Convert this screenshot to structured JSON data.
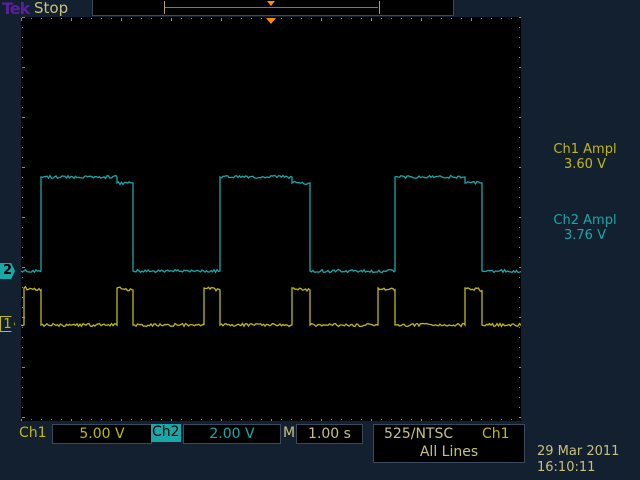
{
  "header": {
    "brand": "Tek",
    "status": "Stop"
  },
  "measurements": [
    {
      "label": "Ch1 Ampl",
      "value": "3.60 V",
      "color": "#c0b814"
    },
    {
      "label": "Ch2 Ampl",
      "value": "3.76 V",
      "color": "#18a8a8"
    }
  ],
  "bottom": {
    "ch1_label": "Ch1",
    "ch1_scale": "5.00 V",
    "ch2_label": "Ch2",
    "ch2_scale": "2.00 V",
    "m_label": "M",
    "time_scale": "1.00 s",
    "trigger_mode": "525/NTSC",
    "trigger_source": "Ch1",
    "trigger_lines": "All Lines",
    "date": "29 Mar 2011",
    "time": "16:10:11"
  },
  "markers": {
    "ch1": "1",
    "ch2": "2"
  },
  "chart_data": {
    "type": "line",
    "xlabel": "",
    "ylabel": "",
    "x_unit": "s",
    "xlim": [
      -5,
      5
    ],
    "grid": false,
    "series": [
      {
        "name": "Ch1",
        "color": "#c0b814",
        "volts_per_div": 5,
        "points": [
          [
            -5,
            0
          ],
          [
            -4.94,
            0
          ],
          [
            -4.94,
            3.7
          ],
          [
            -4.6,
            3.5
          ],
          [
            -4.6,
            0
          ],
          [
            -3.08,
            0
          ],
          [
            -3.08,
            3.7
          ],
          [
            -2.76,
            3.5
          ],
          [
            -2.76,
            0
          ],
          [
            -1.34,
            0
          ],
          [
            -1.34,
            3.7
          ],
          [
            -1.02,
            3.5
          ],
          [
            -1.02,
            0
          ],
          [
            0.42,
            0
          ],
          [
            0.42,
            3.7
          ],
          [
            0.78,
            3.5
          ],
          [
            0.78,
            0
          ],
          [
            2.14,
            0
          ],
          [
            2.14,
            3.7
          ],
          [
            2.48,
            3.5
          ],
          [
            2.48,
            0
          ],
          [
            3.88,
            0
          ],
          [
            3.88,
            3.7
          ],
          [
            4.22,
            3.5
          ],
          [
            4.22,
            0
          ],
          [
            5,
            0
          ]
        ]
      },
      {
        "name": "Ch2",
        "color": "#18a8a8",
        "volts_per_div": 2,
        "points": [
          [
            -5,
            0
          ],
          [
            -4.6,
            0
          ],
          [
            -4.6,
            3.76
          ],
          [
            -3.08,
            3.76
          ],
          [
            -3.08,
            3.52
          ],
          [
            -2.76,
            3.52
          ],
          [
            -2.76,
            0
          ],
          [
            -1.02,
            0
          ],
          [
            -1.02,
            3.76
          ],
          [
            0.42,
            3.76
          ],
          [
            0.42,
            3.52
          ],
          [
            0.78,
            3.52
          ],
          [
            0.78,
            0
          ],
          [
            2.48,
            0
          ],
          [
            2.48,
            3.76
          ],
          [
            3.88,
            3.76
          ],
          [
            3.88,
            3.52
          ],
          [
            4.22,
            3.52
          ],
          [
            4.22,
            0
          ],
          [
            5,
            0
          ]
        ]
      }
    ]
  }
}
